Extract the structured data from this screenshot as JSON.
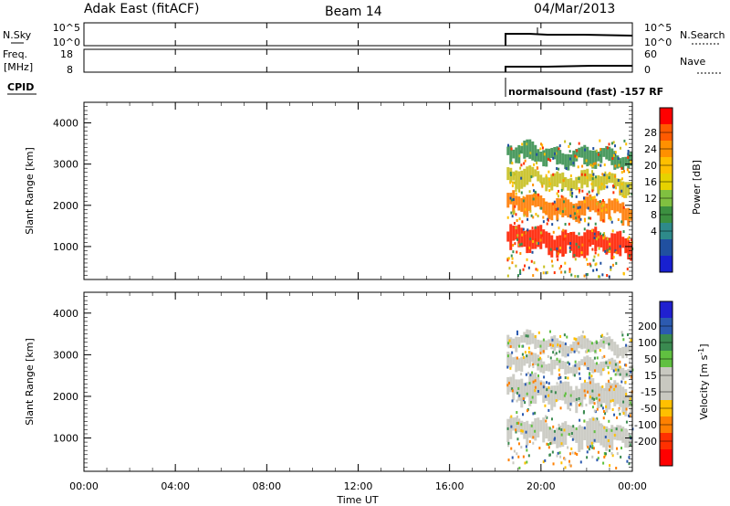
{
  "header": {
    "title": "Adak East (fitACF)",
    "beam": "Beam 14",
    "date": "04/Mar/2013"
  },
  "side_labels": {
    "nsky": "N.Sky",
    "nsearch": "N.Search",
    "freq": "Freq.",
    "freq_unit": "[MHz]",
    "nave": "Nave",
    "cpid": "CPID"
  },
  "small_panels": {
    "nsky_ticks": [
      "10^5",
      "10^0"
    ],
    "nsearch_ticks": [
      "10^5",
      "10^0"
    ],
    "freq_ticks": [
      "18",
      "8"
    ],
    "nave_ticks": [
      "60",
      "0"
    ],
    "cpid_text": "normalsound (fast) -157 RF"
  },
  "chart_data": [
    {
      "type": "heatmap",
      "name": "power-panel",
      "ylabel": "Slant Range [km]",
      "yticks": [
        "4000",
        "3000",
        "2000",
        "1000"
      ],
      "ylim": [
        200,
        4500
      ],
      "xlim": [
        "00:00",
        "00:00"
      ],
      "data_span_ut": [
        "18:30",
        "24:00"
      ],
      "colorbar": {
        "label": "Power [dB]",
        "ticks": [
          "28",
          "24",
          "20",
          "16",
          "12",
          "8",
          "4"
        ],
        "colors": [
          "#ff0000",
          "#ff5a00",
          "#ff9000",
          "#ffbf00",
          "#e6d200",
          "#80c040",
          "#3c9040",
          "#2e8a8a",
          "#2050a0",
          "#1820d0"
        ]
      },
      "bands": [
        {
          "range_km": [
            800,
            1500
          ],
          "level_db": 28,
          "color": "#ff2000"
        },
        {
          "range_km": [
            1700,
            2300
          ],
          "level_db": 22,
          "color": "#ff7a00"
        },
        {
          "range_km": [
            2400,
            2900
          ],
          "level_db": 16,
          "color": "#c8c020"
        },
        {
          "range_km": [
            3000,
            3500
          ],
          "level_db": 8,
          "color": "#3a9050"
        }
      ]
    },
    {
      "type": "heatmap",
      "name": "velocity-panel",
      "ylabel": "Slant Range [km]",
      "yticks": [
        "4000",
        "3000",
        "2000",
        "1000"
      ],
      "ylim": [
        200,
        4500
      ],
      "xlabel": "Time UT",
      "xticks": [
        "00:00",
        "04:00",
        "08:00",
        "12:00",
        "16:00",
        "20:00",
        "00:00"
      ],
      "colorbar": {
        "label": "Velocity [m s",
        "label_sup": "-1",
        "label_end": "]",
        "ticks": [
          "200",
          "100",
          "50",
          "15",
          "-15",
          "-50",
          "-100",
          "-200"
        ],
        "colors": [
          "#2020d0",
          "#2c5ab0",
          "#3a8a50",
          "#60c040",
          "#c8c8c0",
          "#c8c8c0",
          "#ffc000",
          "#ff8000",
          "#ff3000",
          "#ff0000"
        ]
      },
      "bands": [
        {
          "range_km": [
            800,
            1500
          ],
          "color": "#c8c8c0"
        },
        {
          "range_km": [
            1700,
            2500
          ],
          "color": "#c8c8c0"
        },
        {
          "range_km": [
            2600,
            3000
          ],
          "color": "#c8c8c0"
        },
        {
          "range_km": [
            3100,
            3500
          ],
          "color": "#c8c8c0"
        }
      ]
    }
  ]
}
